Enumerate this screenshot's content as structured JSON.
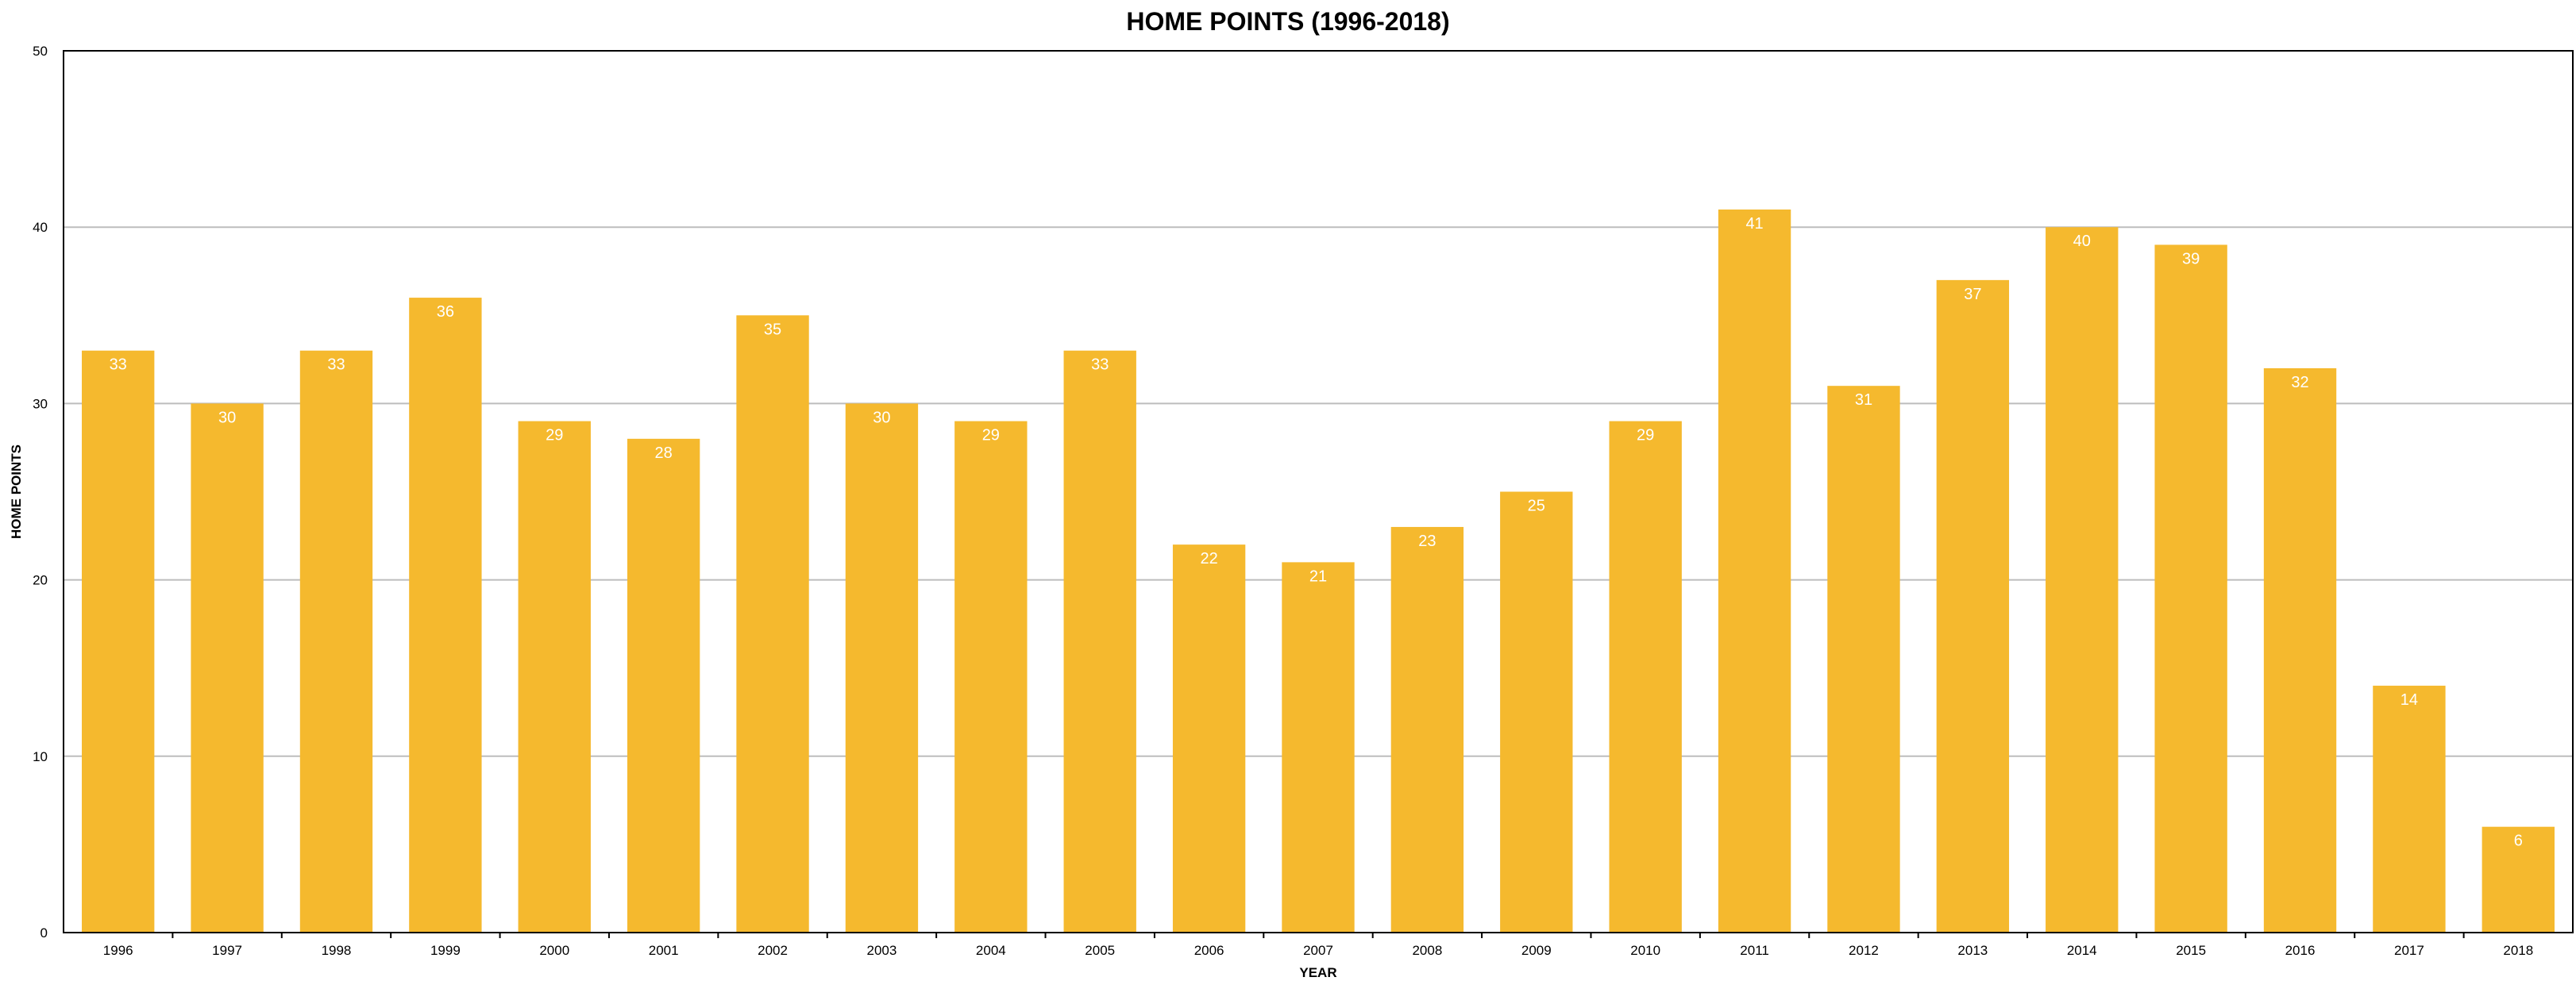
{
  "chart_data": {
    "type": "bar",
    "title": "HOME POINTS (1996-2018)",
    "xlabel": "YEAR",
    "ylabel": "HOME POINTS",
    "categories": [
      "1996",
      "1997",
      "1998",
      "1999",
      "2000",
      "2001",
      "2002",
      "2003",
      "2004",
      "2005",
      "2006",
      "2007",
      "2008",
      "2009",
      "2010",
      "2011",
      "2012",
      "2013",
      "2014",
      "2015",
      "2016",
      "2017",
      "2018"
    ],
    "values": [
      33,
      30,
      33,
      36,
      29,
      28,
      35,
      30,
      29,
      33,
      22,
      21,
      23,
      25,
      29,
      41,
      31,
      37,
      40,
      39,
      32,
      14,
      6
    ],
    "ylim": [
      0,
      50
    ],
    "yticks": [
      0,
      10,
      20,
      30,
      40,
      50
    ],
    "grid": true,
    "data_labels": true,
    "legend": "none",
    "colors": {
      "bar": "#F5B92E",
      "data_label": "#FFFFFF",
      "grid": "#BDBDBD",
      "axis": "#000000"
    }
  }
}
